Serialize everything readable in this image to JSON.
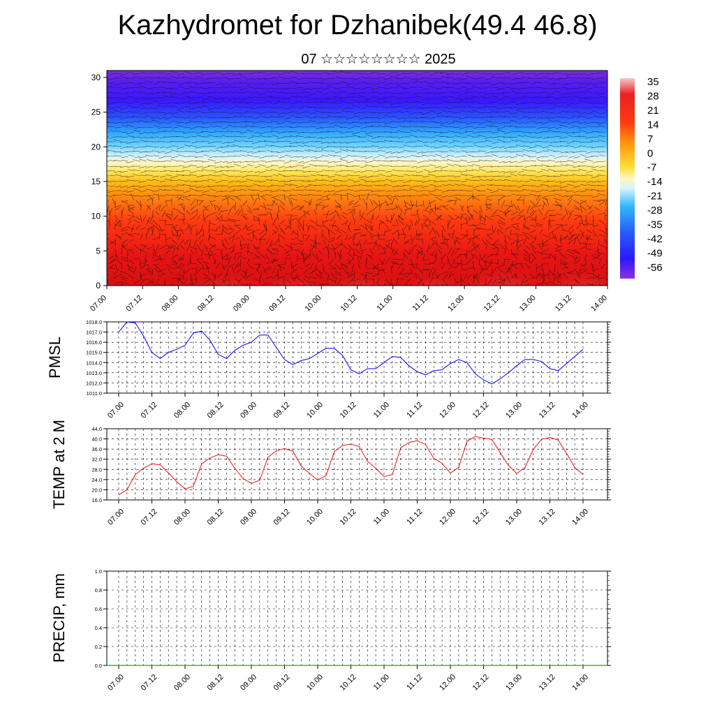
{
  "title": "Kazhydromet for Dzhanibek(49.4 46.8)",
  "subtitle": "07 ☆☆☆☆☆☆☆☆ 2025",
  "time_labels": [
    "07.00",
    "07.12",
    "08.00",
    "08.12",
    "09.00",
    "09.12",
    "10.00",
    "10.12",
    "11.00",
    "11.12",
    "12.00",
    "12.12",
    "13.00",
    "13.12",
    "14.00"
  ],
  "chart_data": [
    {
      "type": "heatmap",
      "description_key": "vertical-section",
      "yticks": [
        "0",
        "5",
        "10",
        "15",
        "20",
        "25",
        "30"
      ],
      "ylim": [
        0,
        31
      ],
      "colorbar_labels": [
        "35",
        "28",
        "21",
        "14",
        "7",
        "0",
        "-7",
        "-14",
        "-21",
        "-28",
        "-35",
        "-42",
        "-49",
        "-56"
      ],
      "colormap": [
        "#7b2fe0",
        "#3a18ff",
        "#2a55ff",
        "#2fa9ff",
        "#8fdfff",
        "#e8f6f5",
        "#fff07a",
        "#ffc21a",
        "#ff8b10",
        "#ff3a10",
        "#ea1010",
        "#f08080",
        "#f7c0c0"
      ]
    },
    {
      "type": "line",
      "ylabel": "PMSL",
      "ylim": [
        1011.0,
        1018.0
      ],
      "yticks": [
        "1011.0",
        "1012.0",
        "1013.0",
        "1014.0",
        "1015.0",
        "1016.0",
        "1017.0",
        "1018.0"
      ],
      "color": "#0000ff",
      "values": [
        1017.0,
        1018.0,
        1017.9,
        1016.6,
        1015.0,
        1014.4,
        1015.0,
        1015.3,
        1015.7,
        1016.9,
        1017.1,
        1016.2,
        1014.8,
        1014.4,
        1015.2,
        1015.7,
        1016.0,
        1016.7,
        1016.7,
        1015.5,
        1014.3,
        1013.8,
        1014.2,
        1014.4,
        1014.9,
        1015.4,
        1015.4,
        1014.7,
        1013.3,
        1012.9,
        1013.4,
        1013.4,
        1014.0,
        1014.6,
        1014.5,
        1013.7,
        1013.1,
        1012.8,
        1013.2,
        1013.3,
        1013.9,
        1014.3,
        1014.0,
        1012.9,
        1012.3,
        1011.9,
        1012.4,
        1013.0,
        1013.7,
        1014.3,
        1014.3,
        1014.1,
        1013.4,
        1013.2,
        1013.9,
        1014.6,
        1015.3
      ]
    },
    {
      "type": "line",
      "ylabel": "TEMP at 2 M",
      "ylim": [
        16.0,
        44.0
      ],
      "yticks": [
        "16.0",
        "20.0",
        "24.0",
        "28.0",
        "32.0",
        "36.0",
        "40.0",
        "44.0"
      ],
      "color": "#ee1111",
      "values": [
        18.0,
        20.0,
        26.0,
        28.5,
        30.2,
        29.8,
        26.6,
        23.2,
        20.3,
        21.4,
        30.2,
        32.5,
        33.8,
        33.2,
        28.5,
        24.4,
        22.5,
        23.7,
        32.8,
        35.3,
        36.2,
        35.2,
        29.3,
        26.5,
        23.8,
        25.6,
        35.0,
        37.4,
        38.0,
        37.0,
        31.2,
        28.5,
        25.2,
        26.0,
        36.5,
        38.6,
        39.3,
        37.8,
        32.3,
        30.4,
        26.6,
        28.8,
        39.1,
        40.9,
        40.3,
        39.8,
        34.6,
        29.6,
        26.4,
        28.8,
        35.9,
        39.8,
        40.6,
        39.5,
        34.4,
        28.8,
        26.0
      ]
    },
    {
      "type": "line",
      "ylabel": "PRECIP, mm",
      "ylim": [
        0.0,
        1.0
      ],
      "yticks": [
        "0.0",
        "0.2",
        "0.4",
        "0.6",
        "0.8",
        "1.0"
      ],
      "color": "#000000",
      "values": []
    }
  ]
}
